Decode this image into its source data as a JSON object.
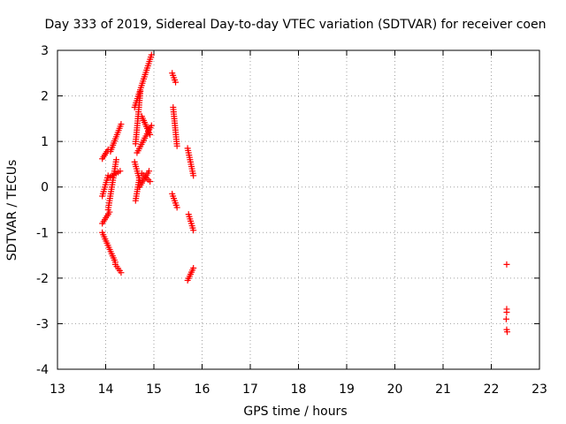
{
  "chart_data": {
    "type": "scatter",
    "title": "Day 333 of 2019, Sidereal Day-to-day VTEC variation (SDTVAR) for receiver coen",
    "xlabel": "GPS time / hours",
    "ylabel": "SDTVAR / TECUs",
    "xlim": [
      13,
      23
    ],
    "ylim": [
      -4,
      3
    ],
    "xticks": [
      "13",
      "14",
      "15",
      "16",
      "17",
      "18",
      "19",
      "20",
      "21",
      "22",
      "23"
    ],
    "yticks": [
      "-4",
      "-3",
      "-2",
      "-1",
      "0",
      "1",
      "2",
      "3"
    ],
    "grid": true,
    "marker": "plus",
    "color": "#ff0000",
    "segments": [
      {
        "x0": 13.93,
        "y0": 0.62,
        "x1": 14.05,
        "y1": 0.82
      },
      {
        "x0": 14.1,
        "y0": 0.78,
        "x1": 14.32,
        "y1": 1.38
      },
      {
        "x0": 13.93,
        "y0": -0.2,
        "x1": 14.05,
        "y1": 0.25
      },
      {
        "x0": 14.05,
        "y0": 0.2,
        "x1": 14.3,
        "y1": 0.35
      },
      {
        "x0": 13.93,
        "y0": -0.8,
        "x1": 14.08,
        "y1": -0.55
      },
      {
        "x0": 14.05,
        "y0": -0.5,
        "x1": 14.22,
        "y1": 0.6
      },
      {
        "x0": 13.93,
        "y0": -1.0,
        "x1": 14.2,
        "y1": -1.65
      },
      {
        "x0": 14.2,
        "y0": -1.7,
        "x1": 14.32,
        "y1": -1.88
      },
      {
        "x0": 14.6,
        "y0": 1.75,
        "x1": 14.95,
        "y1": 2.9
      },
      {
        "x0": 14.62,
        "y0": 0.95,
        "x1": 14.72,
        "y1": 2.1
      },
      {
        "x0": 14.65,
        "y0": 0.75,
        "x1": 14.95,
        "y1": 1.35
      },
      {
        "x0": 14.75,
        "y0": 1.55,
        "x1": 14.92,
        "y1": 1.15
      },
      {
        "x0": 14.6,
        "y0": 0.55,
        "x1": 14.72,
        "y1": 0.1
      },
      {
        "x0": 14.62,
        "y0": -0.3,
        "x1": 14.7,
        "y1": 0.2
      },
      {
        "x0": 14.7,
        "y0": 0.0,
        "x1": 14.9,
        "y1": 0.35
      },
      {
        "x0": 14.75,
        "y0": 0.3,
        "x1": 14.92,
        "y1": 0.12
      },
      {
        "x0": 15.38,
        "y0": 2.5,
        "x1": 15.45,
        "y1": 2.3
      },
      {
        "x0": 15.4,
        "y0": 1.75,
        "x1": 15.48,
        "y1": 0.9
      },
      {
        "x0": 15.38,
        "y0": -0.15,
        "x1": 15.48,
        "y1": -0.45
      },
      {
        "x0": 15.7,
        "y0": 0.85,
        "x1": 15.82,
        "y1": 0.25
      },
      {
        "x0": 15.72,
        "y0": -0.6,
        "x1": 15.82,
        "y1": -0.95
      },
      {
        "x0": 15.7,
        "y0": -2.05,
        "x1": 15.82,
        "y1": -1.78
      }
    ],
    "points": [
      {
        "x": 22.32,
        "y": -1.7
      },
      {
        "x": 22.32,
        "y": -2.68
      },
      {
        "x": 22.32,
        "y": -2.75
      },
      {
        "x": 22.31,
        "y": -2.9
      },
      {
        "x": 22.32,
        "y": -3.13
      },
      {
        "x": 22.33,
        "y": -3.18
      }
    ]
  }
}
